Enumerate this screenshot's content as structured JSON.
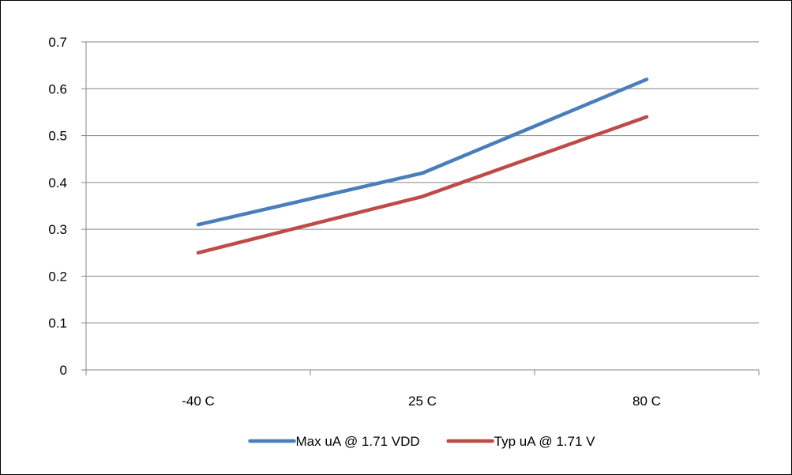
{
  "chart_data": {
    "type": "line",
    "categories": [
      "-40 C",
      "25 C",
      "80 C"
    ],
    "series": [
      {
        "name": "Max uA @ 1.71 VDD",
        "values": [
          0.31,
          0.42,
          0.62
        ],
        "color": "#4a7ebb"
      },
      {
        "name": "Typ uA @ 1.71 V",
        "values": [
          0.25,
          0.37,
          0.54
        ],
        "color": "#be4b48"
      }
    ],
    "y_ticks": [
      "0",
      "0.1",
      "0.2",
      "0.3",
      "0.4",
      "0.5",
      "0.6",
      "0.7"
    ],
    "ylim": [
      0,
      0.7
    ],
    "grid": true,
    "gridline_color": "#868686",
    "legend_position": "bottom"
  }
}
